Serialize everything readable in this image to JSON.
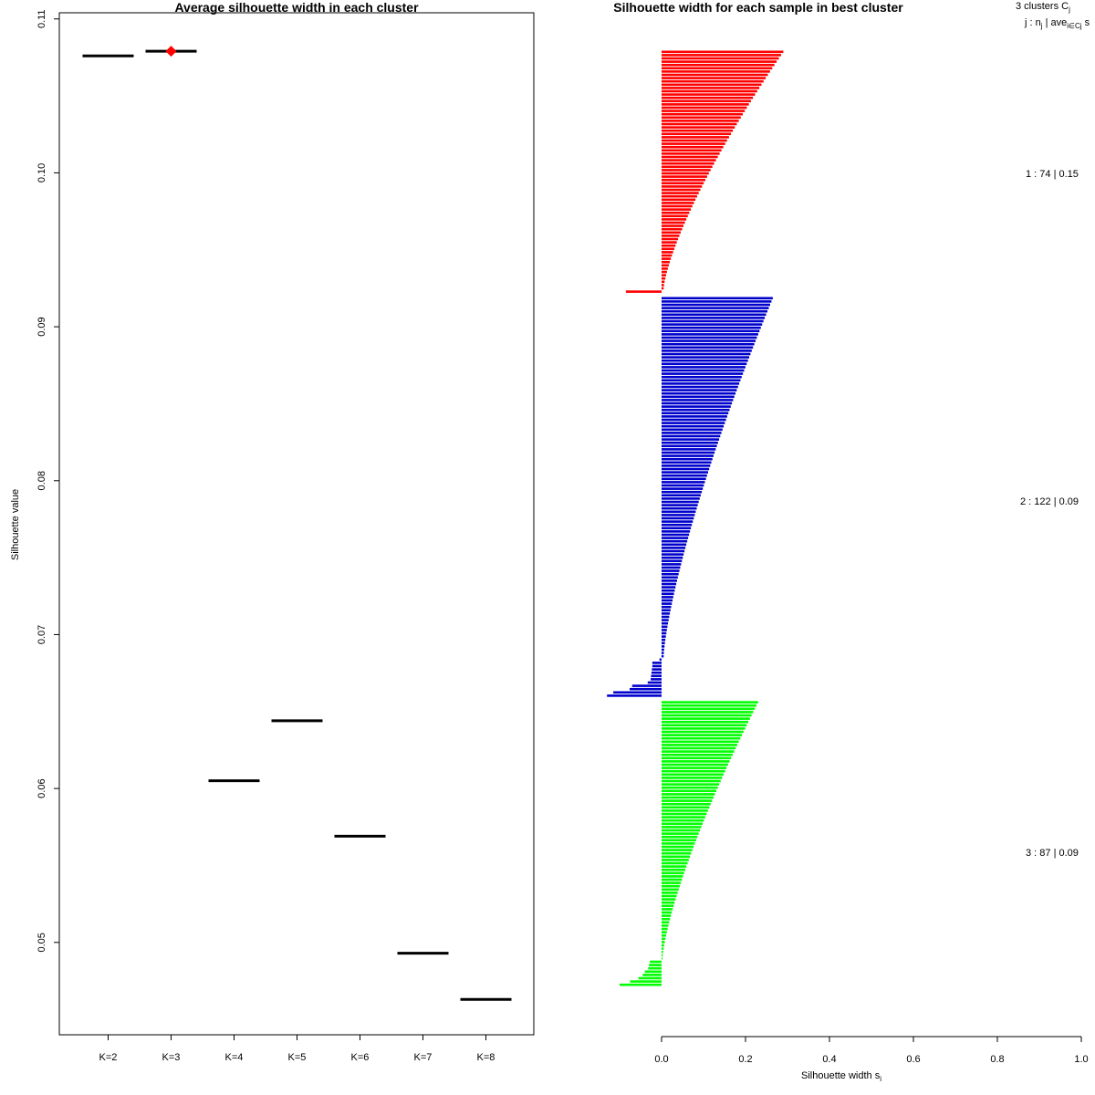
{
  "chart_data": [
    {
      "type": "scatter",
      "title": "Average silhouette width in each cluster",
      "xlabel": "",
      "ylabel": "Silhouette value",
      "categories": [
        "K=2",
        "K=3",
        "K=4",
        "K=5",
        "K=6",
        "K=7",
        "K=8"
      ],
      "values": [
        0.1076,
        0.1079,
        0.0605,
        0.0644,
        0.0569,
        0.0493,
        0.0463
      ],
      "best_index": 1,
      "best_color": "#ff0000",
      "ylim": [
        0.044,
        0.1104
      ],
      "yticks": [
        0.05,
        0.06,
        0.07,
        0.08,
        0.09,
        0.1,
        0.11
      ],
      "ytick_labels": [
        "0.05",
        "0.06",
        "0.07",
        "0.08",
        "0.09",
        "0.10",
        "0.11"
      ],
      "grid": false
    },
    {
      "type": "bar",
      "orientation": "horizontal",
      "title": "Silhouette width for each sample in best cluster",
      "xlabel": "Silhouette width s",
      "xlabel_subscript": "i",
      "xlim": [
        0,
        1
      ],
      "xticks": [
        0.0,
        0.2,
        0.4,
        0.6,
        0.8,
        1.0
      ],
      "xtick_labels": [
        "0.0",
        "0.2",
        "0.4",
        "0.6",
        "0.8",
        "1.0"
      ],
      "header": {
        "line1": "3  clusters  C",
        "line1_sub": "j",
        "line2": "j :  n",
        "line2_sub": "j",
        "line2_mid": " | ave",
        "line2_sub2": "i∈Cj",
        "line2_end": "  s"
      },
      "clusters": [
        {
          "id": 1,
          "n": 74,
          "avg_label": "0.15",
          "label": "1 :  74  |  0.15",
          "color": "#ff0000",
          "profile": {
            "top": 0.29,
            "bottom": 0.005,
            "neg_count": 1,
            "neg": [
              -0.085
            ]
          }
        },
        {
          "id": 2,
          "n": 122,
          "avg_label": "0.09",
          "label": "2 :  122  |  0.09",
          "color": "#0000cd",
          "profile": {
            "top": 0.265,
            "bottom": 0.005,
            "neg_count": 12,
            "neg": [
              -0.005,
              -0.022,
              -0.022,
              -0.023,
              -0.024,
              -0.025,
              -0.026,
              -0.033,
              -0.07,
              -0.076,
              -0.115,
              -0.13
            ]
          }
        },
        {
          "id": 3,
          "n": 87,
          "avg_label": "0.09",
          "label": "3 :  87  |  0.09",
          "color": "#00ff00",
          "profile": {
            "top": 0.23,
            "bottom": 0.002,
            "neg_count": 8,
            "neg": [
              -0.028,
              -0.03,
              -0.032,
              -0.04,
              -0.045,
              -0.055,
              -0.075,
              -0.1
            ]
          }
        }
      ]
    }
  ]
}
